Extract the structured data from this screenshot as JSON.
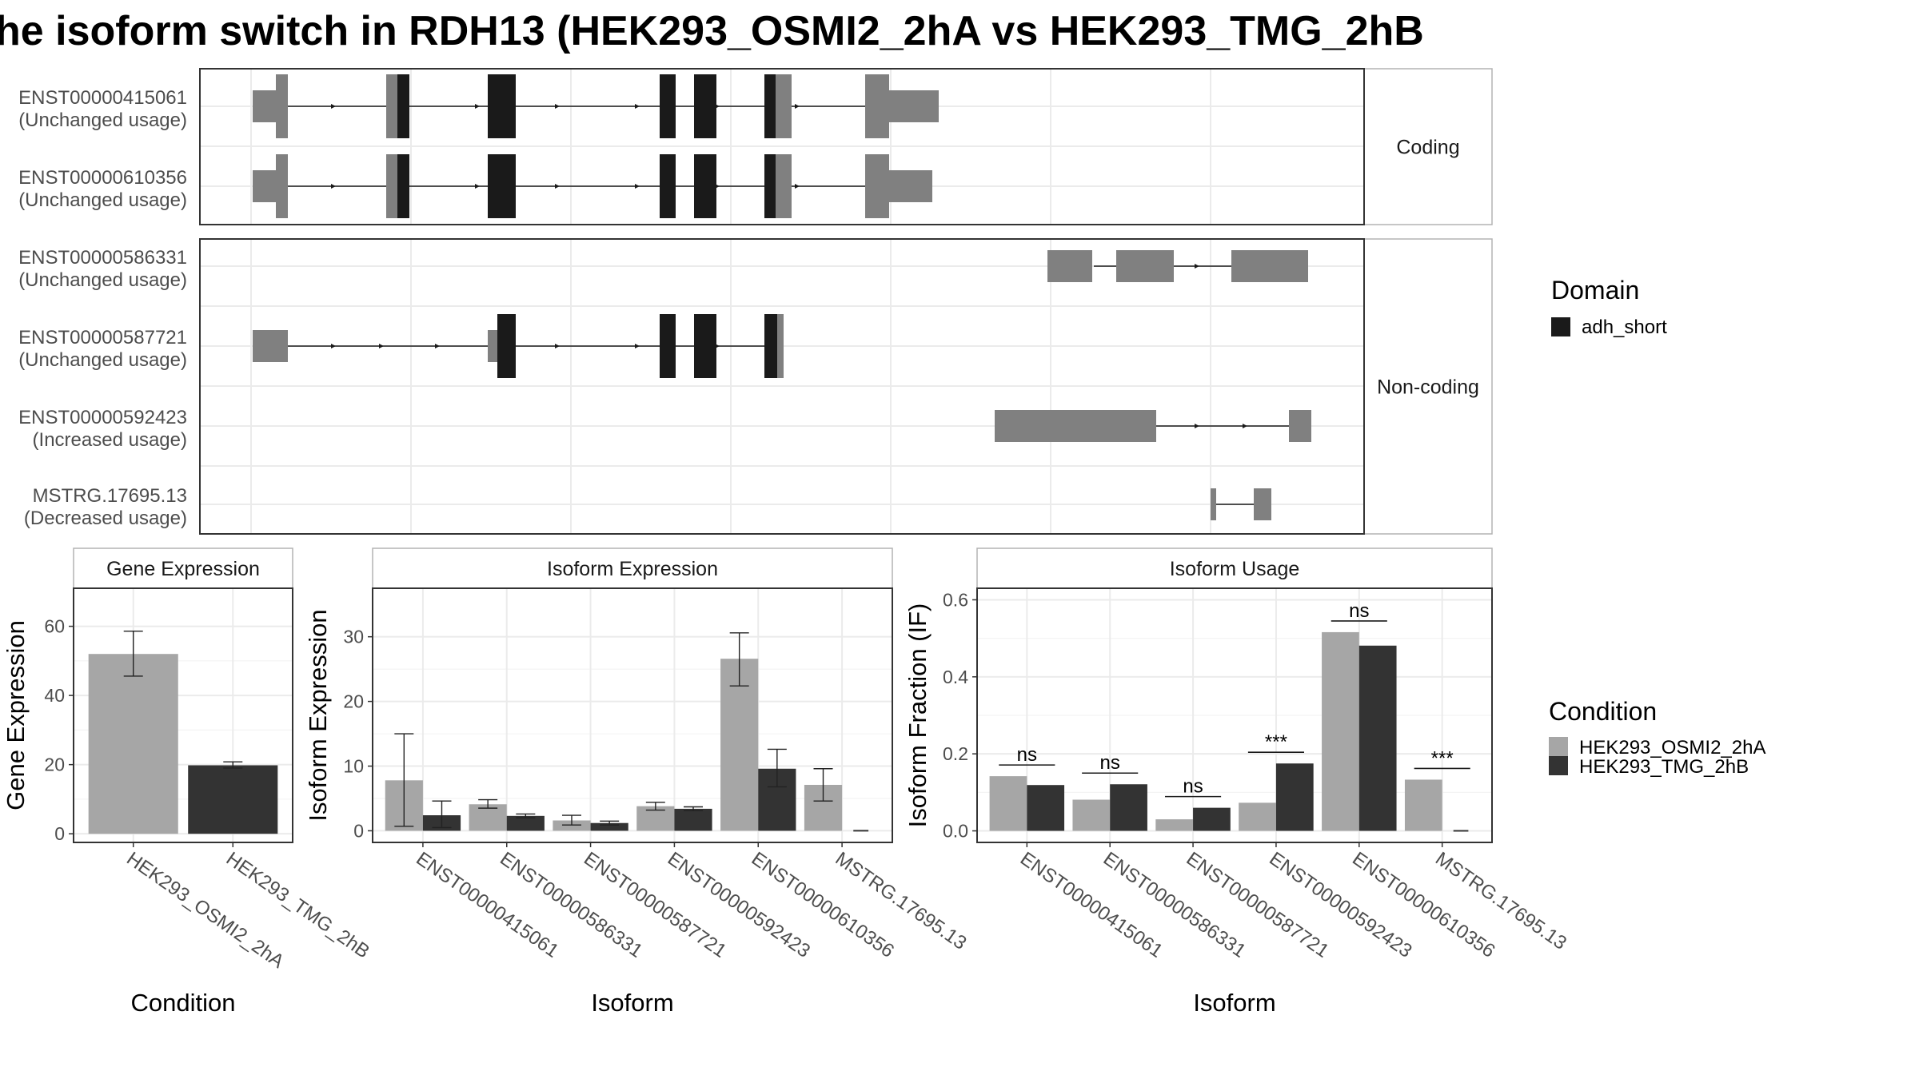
{
  "title": "he isoform switch in RDH13 (HEK293_OSMI2_2hA vs HEK293_TMG_2hB",
  "colors": {
    "utr": "#808080",
    "cds": "#1a1a1a",
    "condition_a": "#a6a6a6",
    "condition_b": "#333333",
    "grid": "#ebebeb",
    "panel_border": "#333333",
    "strip_border": "#b3b3b3"
  },
  "transcript_panel": {
    "facets": [
      {
        "label": "Coding",
        "transcripts": [
          {
            "id": "ENST00000415061",
            "usage": "(Unchanged usage)"
          },
          {
            "id": "ENST00000610356",
            "usage": "(Unchanged usage)"
          }
        ]
      },
      {
        "label": "Non-coding",
        "transcripts": [
          {
            "id": "ENST00000586331",
            "usage": "(Unchanged usage)"
          },
          {
            "id": "ENST00000587721",
            "usage": "(Unchanged usage)"
          },
          {
            "id": "ENST00000592423",
            "usage": "(Increased usage)"
          },
          {
            "id": "MSTRG.17695.13",
            "usage": "(Decreased usage)"
          }
        ]
      }
    ],
    "domain_legend": {
      "title": "Domain",
      "items": [
        {
          "label": "adh_short",
          "color": "#1a1a1a"
        }
      ]
    }
  },
  "condition_legend": {
    "title": "Condition",
    "items": [
      {
        "label": "HEK293_OSMI2_2hA",
        "color": "#a6a6a6"
      },
      {
        "label": "HEK293_TMG_2hB",
        "color": "#333333"
      }
    ]
  },
  "chart_data": [
    {
      "type": "bar",
      "title": "Gene Expression",
      "xlabel": "Condition",
      "ylabel": "Gene Expression",
      "categories": [
        "HEK293_OSMI2_2hA",
        "HEK293_TMG_2hB"
      ],
      "values": [
        52.0,
        19.8
      ],
      "error_low": [
        45.6,
        19.0
      ],
      "error_high": [
        58.6,
        20.8
      ],
      "ylim": [
        -2.5,
        71
      ],
      "yticks": [
        0,
        20,
        40,
        60
      ]
    },
    {
      "type": "bar",
      "title": "Isoform Expression",
      "xlabel": "Isoform",
      "ylabel": "Isoform Expression",
      "categories": [
        "ENST00000415061",
        "ENST00000586331",
        "ENST00000587721",
        "ENST00000592423",
        "ENST00000610356",
        "MSTRG.17695.13"
      ],
      "series": [
        {
          "name": "HEK293_OSMI2_2hA",
          "values": [
            7.8,
            4.1,
            1.6,
            3.8,
            26.6,
            7.1
          ],
          "error_low": [
            0.7,
            3.5,
            0.9,
            3.2,
            22.4,
            4.6
          ],
          "error_high": [
            15.0,
            4.8,
            2.4,
            4.4,
            30.6,
            9.6
          ]
        },
        {
          "name": "HEK293_TMG_2hB",
          "values": [
            2.4,
            2.3,
            1.2,
            3.4,
            9.6,
            0.0
          ],
          "error_low": [
            0.5,
            2.0,
            0.9,
            3.1,
            6.8,
            0.0
          ],
          "error_high": [
            4.6,
            2.6,
            1.5,
            3.7,
            12.6,
            0.0
          ]
        }
      ],
      "ylim": [
        -1.8,
        37.5
      ],
      "yticks": [
        0,
        10,
        20,
        30
      ]
    },
    {
      "type": "bar",
      "title": "Isoform Usage",
      "xlabel": "Isoform",
      "ylabel": "Isoform Fraction (IF)",
      "categories": [
        "ENST00000415061",
        "ENST00000586331",
        "ENST00000587721",
        "ENST00000592423",
        "ENST00000610356",
        "MSTRG.17695.13"
      ],
      "series": [
        {
          "name": "HEK293_OSMI2_2hA",
          "values": [
            0.142,
            0.081,
            0.03,
            0.073,
            0.516,
            0.133
          ]
        },
        {
          "name": "HEK293_TMG_2hB",
          "values": [
            0.119,
            0.121,
            0.06,
            0.175,
            0.481,
            0.0
          ]
        }
      ],
      "significance": [
        "ns",
        "ns",
        "ns",
        "***",
        "ns",
        "***"
      ],
      "ylim": [
        -0.03,
        0.63
      ],
      "yticks": [
        0.0,
        0.2,
        0.4,
        0.6
      ],
      "ytick_labels": [
        "0.0",
        "0.2",
        "0.4",
        "0.6"
      ]
    }
  ]
}
